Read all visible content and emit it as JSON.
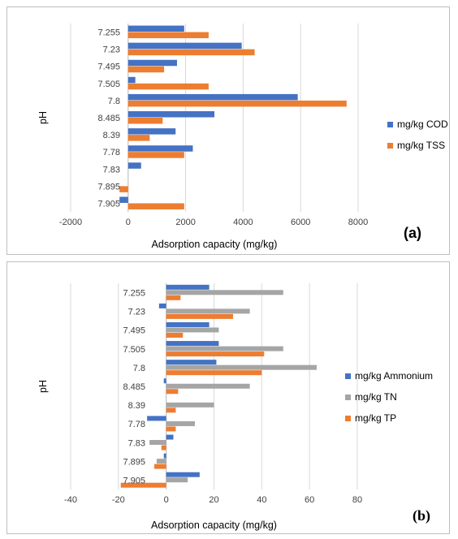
{
  "chart_data": [
    {
      "type": "bar",
      "orientation": "horizontal",
      "panel_label": "(a)",
      "categories": [
        "7.255",
        "7.23",
        "7.495",
        "7.505",
        "7.8",
        "8.485",
        "8.39",
        "7.78",
        "7.83",
        "7.895",
        "7.905"
      ],
      "xlabel": "Adsorption capacity (mg/kg)",
      "ylabel": "pH",
      "xlim": [
        -2000,
        8000
      ],
      "xticks": [
        "-2000",
        "0",
        "2000",
        "4000",
        "6000",
        "8000"
      ],
      "grid": "vertical",
      "legend_position": "right",
      "series": [
        {
          "name": "mg/kg COD",
          "color": "#4472C4",
          "values": [
            1950,
            3950,
            1700,
            250,
            5900,
            3000,
            1650,
            2250,
            450,
            0,
            -300
          ]
        },
        {
          "name": "mg/kg TSS",
          "color": "#ED7D31",
          "values": [
            2800,
            4400,
            1250,
            2800,
            7600,
            1200,
            750,
            1950,
            0,
            -300,
            1950
          ]
        }
      ]
    },
    {
      "type": "bar",
      "orientation": "horizontal",
      "panel_label": "(b)",
      "categories": [
        "7.255",
        "7.23",
        "7.495",
        "7.505",
        "7.8",
        "8.485",
        "8.39",
        "7.78",
        "7.83",
        "7.895",
        "7.905"
      ],
      "xlabel": "Adsorption capacity (mg/kg)",
      "ylabel": "pH",
      "xlim": [
        -40,
        80
      ],
      "xticks": [
        "-40",
        "-20",
        "0",
        "20",
        "40",
        "60",
        "80"
      ],
      "grid": "vertical",
      "legend_position": "right",
      "series": [
        {
          "name": "mg/kg Ammonium",
          "color": "#4472C4",
          "values": [
            18,
            -3,
            18,
            22,
            21,
            -1,
            0,
            -8,
            3,
            -1,
            14
          ]
        },
        {
          "name": "mg/kg TN",
          "color": "#A5A5A5",
          "values": [
            49,
            35,
            22,
            49,
            63,
            35,
            20,
            12,
            -7,
            -4,
            9
          ]
        },
        {
          "name": "mg/kg TP",
          "color": "#ED7D31",
          "values": [
            6,
            28,
            7,
            41,
            40,
            5,
            4,
            4,
            -2,
            -5,
            -19
          ]
        }
      ]
    }
  ]
}
